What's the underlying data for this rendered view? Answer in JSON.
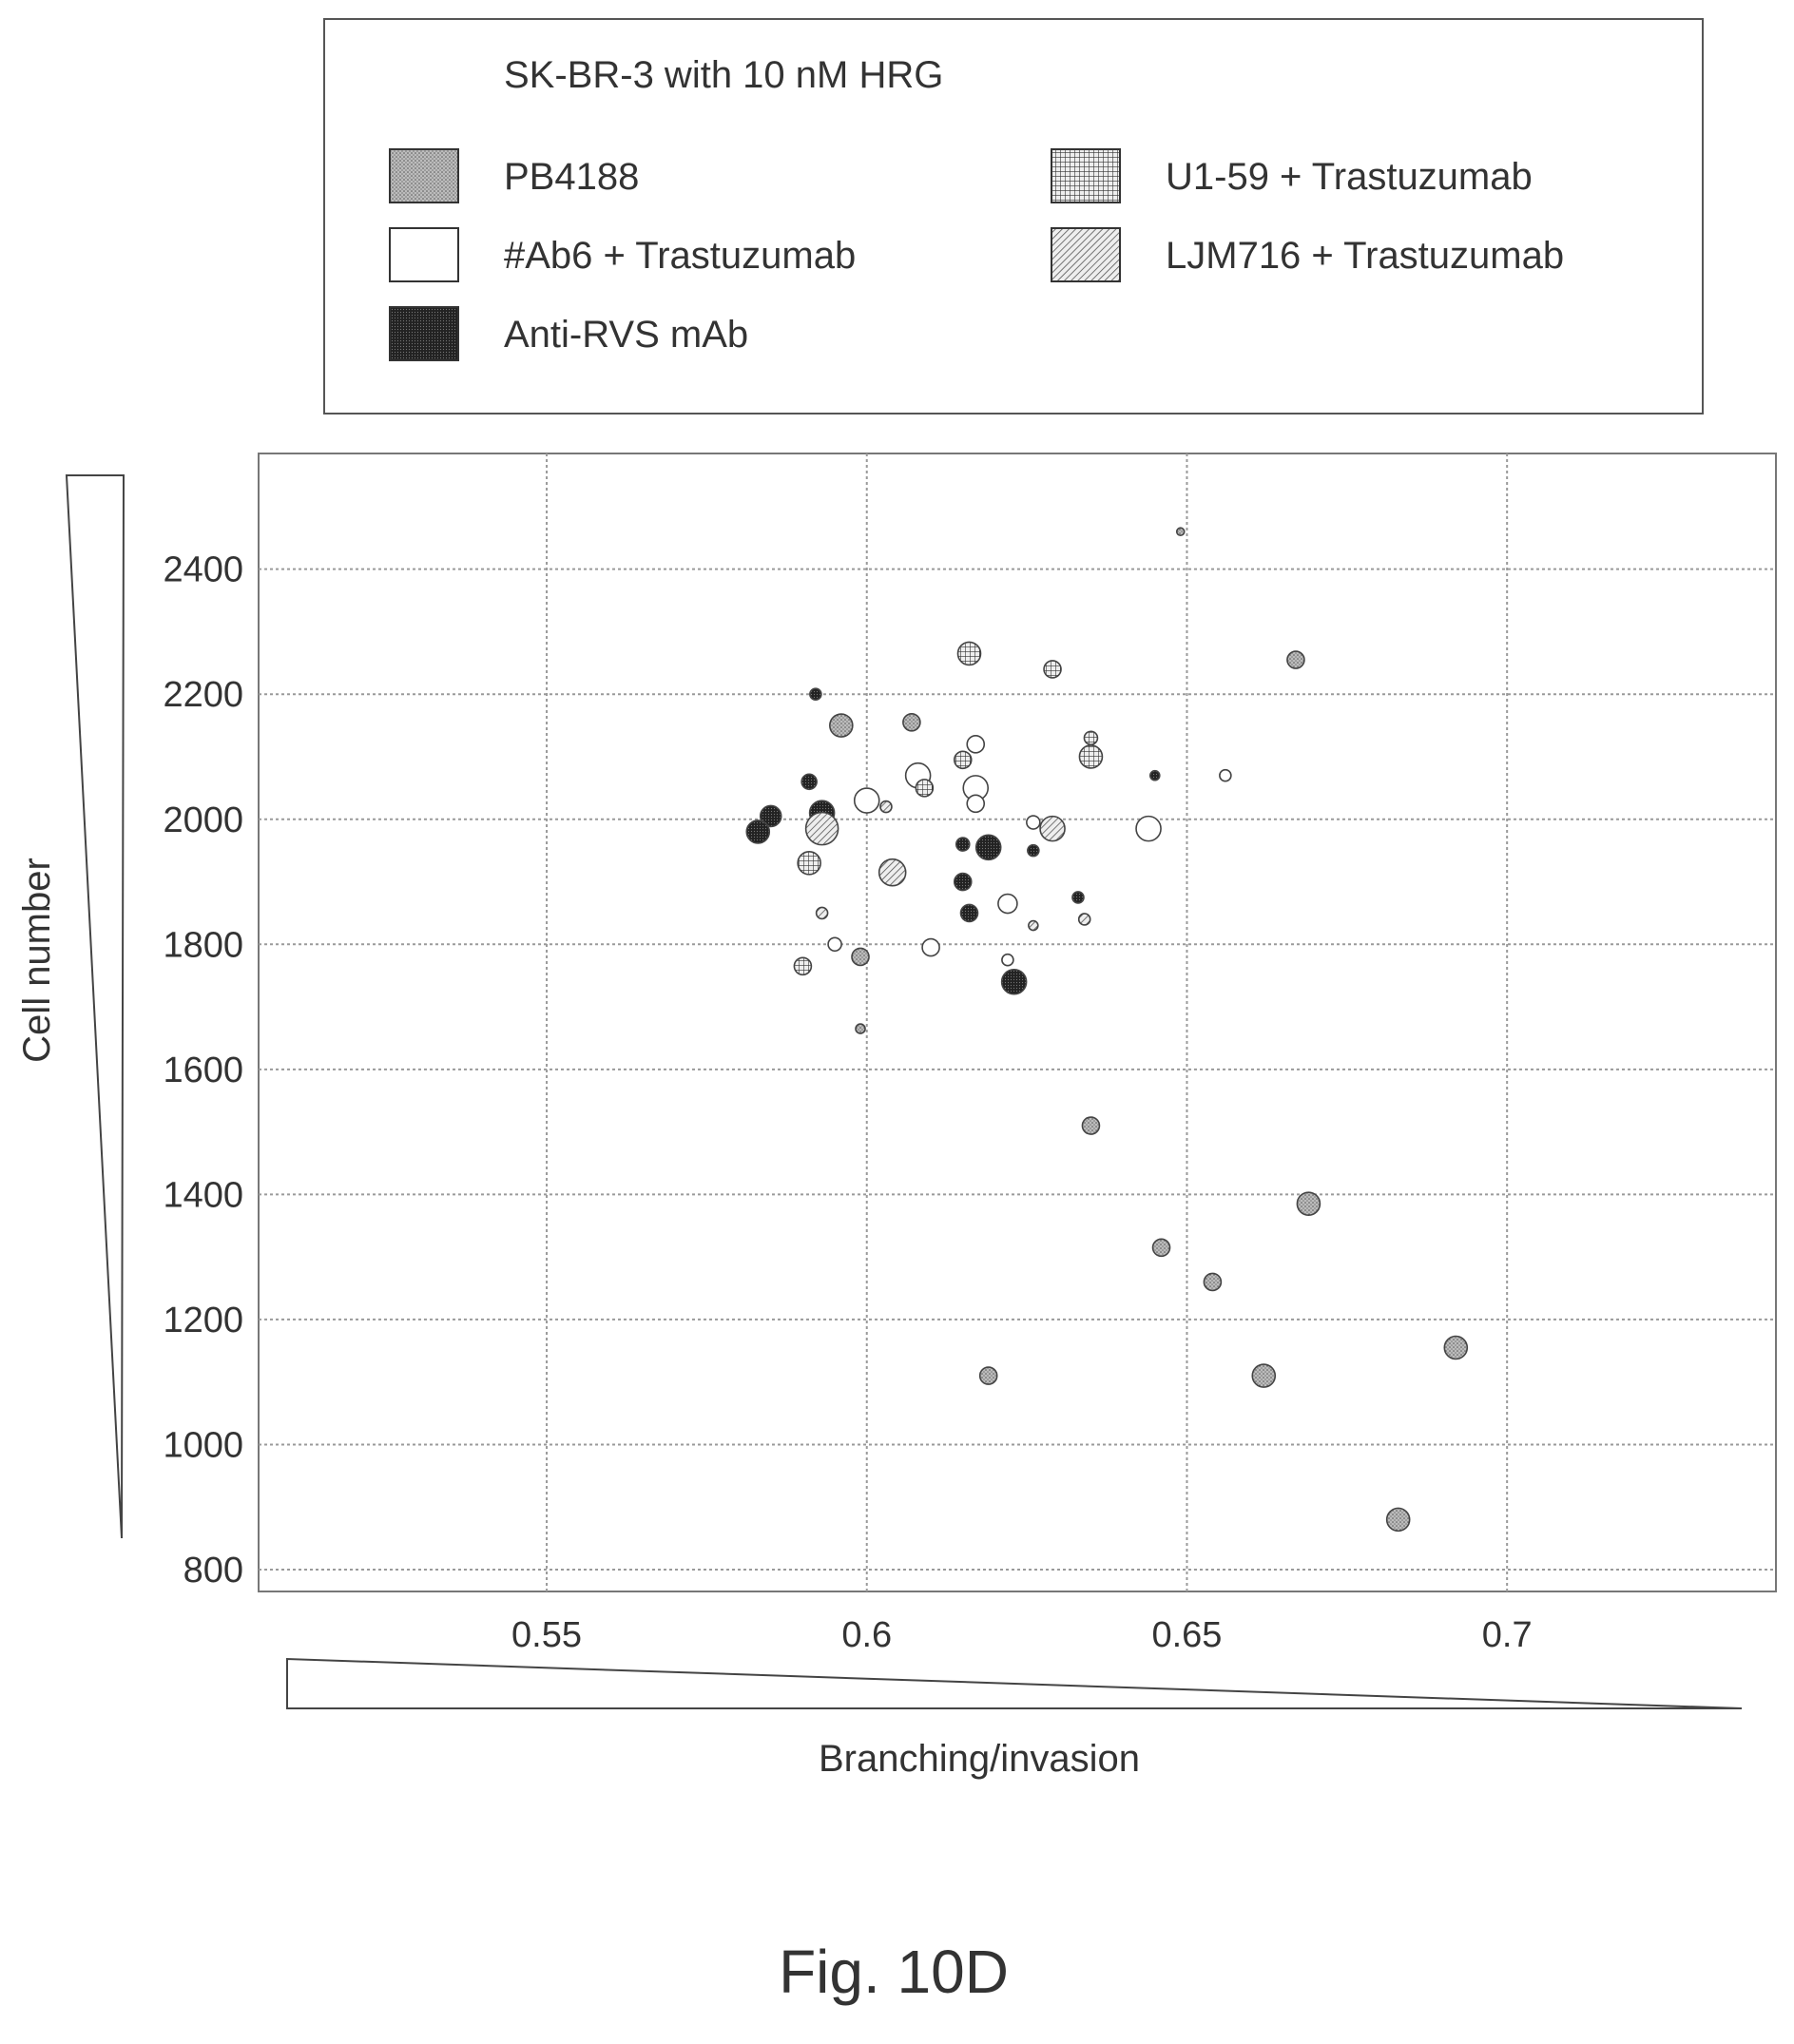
{
  "chart_data": {
    "type": "scatter",
    "title": "SK-BR-3 with 10 nM HRG",
    "xlabel": "Branching/invasion",
    "ylabel": "Cell number",
    "xlim": [
      0.505,
      0.742
    ],
    "ylim": [
      765,
      2585
    ],
    "xticks": [
      0.55,
      0.6,
      0.65,
      0.7
    ],
    "xtick_labels": [
      "0.55",
      "0.6",
      "0.65",
      "0.7"
    ],
    "yticks": [
      800,
      1000,
      1200,
      1400,
      1600,
      1800,
      2000,
      2200,
      2400
    ],
    "ytick_labels": [
      "800",
      "1000",
      "1200",
      "1400",
      "1600",
      "1800",
      "2000",
      "2200",
      "2400"
    ],
    "grid": true,
    "legend_position": "top",
    "caption": "Fig. 10D",
    "series": [
      {
        "name": "PB4188",
        "pattern": "stipple",
        "points": [
          {
            "x": 0.649,
            "y": 2460,
            "r": 4
          },
          {
            "x": 0.667,
            "y": 2255,
            "r": 9
          },
          {
            "x": 0.596,
            "y": 2150,
            "r": 12
          },
          {
            "x": 0.607,
            "y": 2155,
            "r": 9
          },
          {
            "x": 0.599,
            "y": 1780,
            "r": 9
          },
          {
            "x": 0.599,
            "y": 1665,
            "r": 5
          },
          {
            "x": 0.635,
            "y": 1510,
            "r": 9
          },
          {
            "x": 0.669,
            "y": 1385,
            "r": 12
          },
          {
            "x": 0.646,
            "y": 1315,
            "r": 9
          },
          {
            "x": 0.654,
            "y": 1260,
            "r": 9
          },
          {
            "x": 0.692,
            "y": 1155,
            "r": 12
          },
          {
            "x": 0.619,
            "y": 1110,
            "r": 9
          },
          {
            "x": 0.662,
            "y": 1110,
            "r": 12
          },
          {
            "x": 0.683,
            "y": 880,
            "r": 12
          }
        ]
      },
      {
        "name": "#Ab6 + Trastuzumab",
        "pattern": "white",
        "points": [
          {
            "x": 0.656,
            "y": 2070,
            "r": 6
          },
          {
            "x": 0.608,
            "y": 2070,
            "r": 13
          },
          {
            "x": 0.617,
            "y": 2120,
            "r": 9
          },
          {
            "x": 0.617,
            "y": 2050,
            "r": 13
          },
          {
            "x": 0.617,
            "y": 2025,
            "r": 9
          },
          {
            "x": 0.6,
            "y": 2030,
            "r": 13
          },
          {
            "x": 0.644,
            "y": 1985,
            "r": 13
          },
          {
            "x": 0.626,
            "y": 1995,
            "r": 7
          },
          {
            "x": 0.622,
            "y": 1865,
            "r": 10
          },
          {
            "x": 0.61,
            "y": 1795,
            "r": 9
          },
          {
            "x": 0.595,
            "y": 1800,
            "r": 7
          },
          {
            "x": 0.622,
            "y": 1775,
            "r": 6
          }
        ]
      },
      {
        "name": "Anti-RVS mAb",
        "pattern": "dark",
        "points": [
          {
            "x": 0.592,
            "y": 2200,
            "r": 6
          },
          {
            "x": 0.591,
            "y": 2060,
            "r": 8
          },
          {
            "x": 0.585,
            "y": 2005,
            "r": 11
          },
          {
            "x": 0.583,
            "y": 1980,
            "r": 12
          },
          {
            "x": 0.593,
            "y": 2010,
            "r": 13
          },
          {
            "x": 0.645,
            "y": 2070,
            "r": 5
          },
          {
            "x": 0.619,
            "y": 1955,
            "r": 13
          },
          {
            "x": 0.615,
            "y": 1960,
            "r": 7
          },
          {
            "x": 0.626,
            "y": 1950,
            "r": 6
          },
          {
            "x": 0.615,
            "y": 1900,
            "r": 9
          },
          {
            "x": 0.633,
            "y": 1875,
            "r": 6
          },
          {
            "x": 0.616,
            "y": 1850,
            "r": 9
          },
          {
            "x": 0.623,
            "y": 1740,
            "r": 13
          }
        ]
      },
      {
        "name": "U1-59 + Trastuzumab",
        "pattern": "grid",
        "points": [
          {
            "x": 0.616,
            "y": 2265,
            "r": 12
          },
          {
            "x": 0.629,
            "y": 2240,
            "r": 9
          },
          {
            "x": 0.635,
            "y": 2130,
            "r": 7
          },
          {
            "x": 0.635,
            "y": 2100,
            "r": 12
          },
          {
            "x": 0.615,
            "y": 2095,
            "r": 9
          },
          {
            "x": 0.609,
            "y": 2050,
            "r": 9
          },
          {
            "x": 0.591,
            "y": 1930,
            "r": 12
          },
          {
            "x": 0.59,
            "y": 1765,
            "r": 9
          }
        ]
      },
      {
        "name": "LJM716 + Trastuzumab",
        "pattern": "hatch",
        "points": [
          {
            "x": 0.593,
            "y": 1985,
            "r": 17
          },
          {
            "x": 0.603,
            "y": 2020,
            "r": 6
          },
          {
            "x": 0.604,
            "y": 1915,
            "r": 14
          },
          {
            "x": 0.629,
            "y": 1985,
            "r": 13
          },
          {
            "x": 0.593,
            "y": 1850,
            "r": 6
          },
          {
            "x": 0.626,
            "y": 1830,
            "r": 5
          },
          {
            "x": 0.634,
            "y": 1840,
            "r": 6
          }
        ]
      }
    ]
  }
}
